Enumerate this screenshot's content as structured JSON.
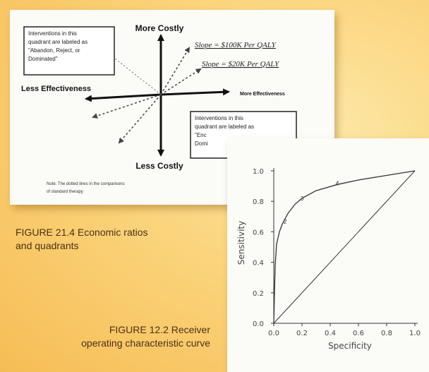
{
  "figure1": {
    "top_axis_label": "More Costly",
    "bottom_axis_label": "Less Costly",
    "left_axis_label": "Less Effectiveness",
    "right_axis_label": "More Effectiveness",
    "slope_upper": "Slope = $100K Per QALY",
    "slope_lower": "Slope = $20K Per QALY",
    "box_top_left": [
      "Interventions in this",
      "quadrant are labeled as",
      "\"Abandon, Reject, or",
      "Dominated\""
    ],
    "box_bottom_right": [
      "Interventions in this",
      "quadrant are labeled as",
      "\"Enc",
      "Domi"
    ],
    "note": [
      "Note: The dotted lines in the comparisons",
      "of standard therapy"
    ],
    "caption": [
      "FIGURE 21.4 Economic ratios",
      "and quadrants"
    ]
  },
  "figure2": {
    "caption": [
      "FIGURE 12.2 Receiver",
      "operating characteristic curve"
    ]
  },
  "chart_data": {
    "type": "line",
    "title": "",
    "xlabel": "Specificity",
    "ylabel": "Sensitivity",
    "xlim": [
      0.0,
      1.0
    ],
    "ylim": [
      0.0,
      1.0
    ],
    "x_ticks": [
      "0.0",
      "0.2",
      "0.4",
      "0.6",
      "0.8",
      "1.0"
    ],
    "y_ticks": [
      "0.0",
      "0.2",
      "0.4",
      "0.6",
      "0.8",
      "1.0"
    ],
    "grid": false,
    "series": [
      {
        "x": [
          0.0,
          0.005,
          0.01,
          0.02,
          0.04,
          0.06,
          0.1,
          0.15,
          0.2,
          0.3,
          0.45,
          0.6,
          0.8,
          1.0
        ],
        "y": [
          0.0,
          0.2,
          0.38,
          0.52,
          0.6,
          0.65,
          0.72,
          0.78,
          0.82,
          0.87,
          0.91,
          0.94,
          0.97,
          1.0
        ]
      },
      {
        "x": [
          0.0,
          1.0
        ],
        "y": [
          0.0,
          1.0
        ]
      }
    ],
    "annotations": [
      {
        "text": "2",
        "x": 0.08,
        "y": 0.67
      },
      {
        "text": "3",
        "x": 0.2,
        "y": 0.82
      },
      {
        "text": "4",
        "x": 0.45,
        "y": 0.92
      }
    ]
  }
}
